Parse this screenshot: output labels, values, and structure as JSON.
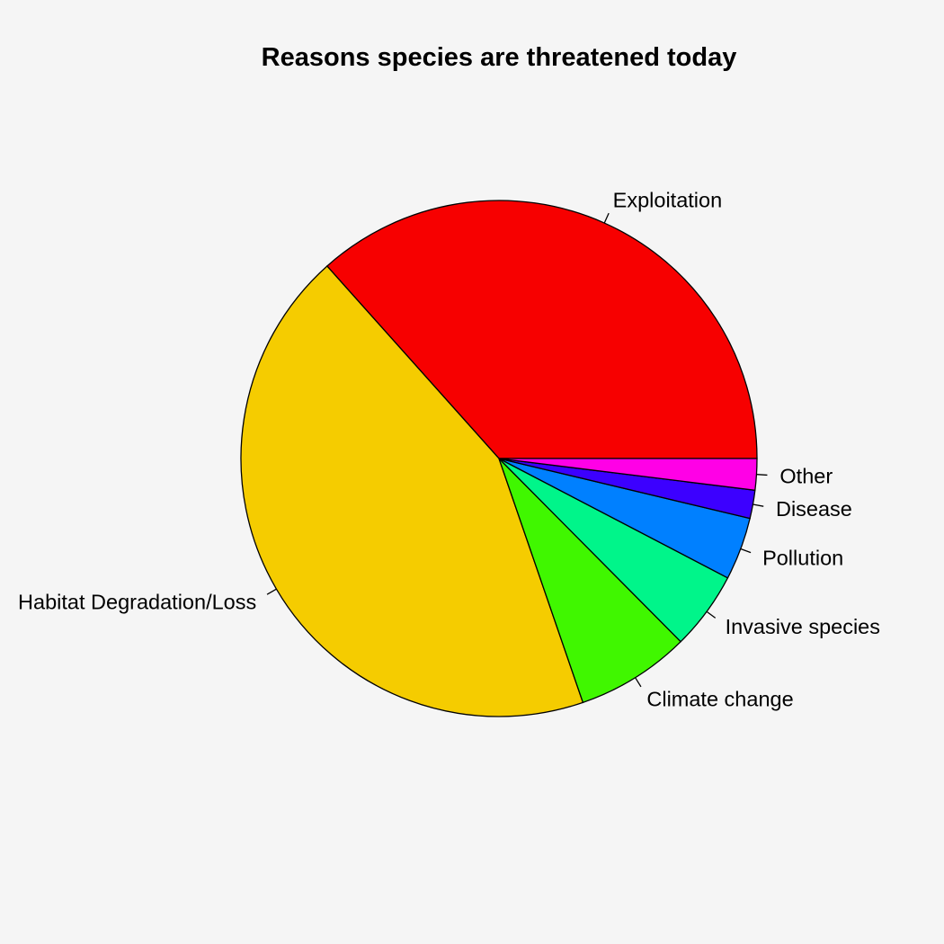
{
  "chart_data": {
    "type": "pie",
    "title": "Reasons species are threatened today",
    "start_angle_deg": 0,
    "direction": "counterclockwise",
    "slices": [
      {
        "label": "Exploitation",
        "value": 37.3,
        "color": "#f70000"
      },
      {
        "label": "Habitat Degradation/Loss",
        "value": 44.5,
        "color": "#f5cc00"
      },
      {
        "label": "Climate change",
        "value": 7.3,
        "color": "#40f700"
      },
      {
        "label": "Invasive species",
        "value": 5.0,
        "color": "#00f58a"
      },
      {
        "label": "Pollution",
        "value": 4.0,
        "color": "#0080ff"
      },
      {
        "label": "Disease",
        "value": 1.8,
        "color": "#3c00ff"
      },
      {
        "label": "Other",
        "value": 2.0,
        "color": "#ff00e6"
      }
    ]
  }
}
